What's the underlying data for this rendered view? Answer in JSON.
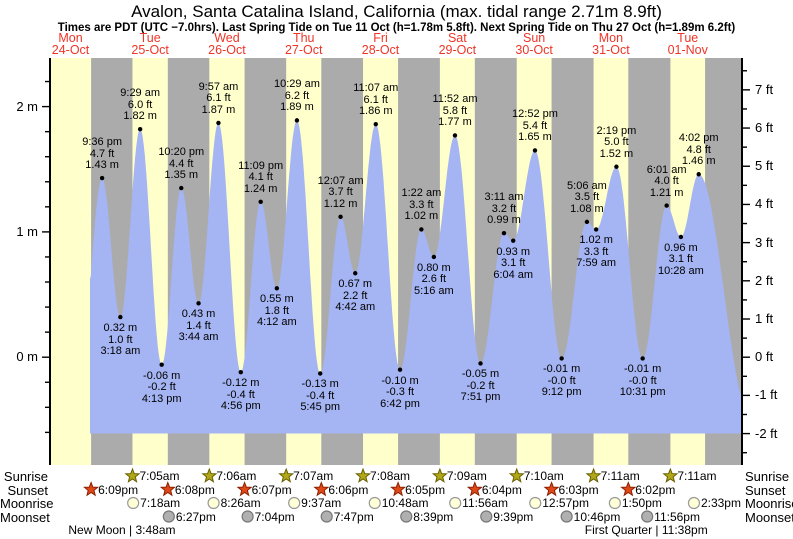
{
  "title": "Avalon, Santa Catalina Island, California (max. tidal range 2.71m 8.9ft)",
  "subtitle": "Times are PDT (UTC −7.0hrs). Last Spring Tide on Tue 11 Oct (h=1.78m 5.8ft). Next Spring Tide on Thu 27 Oct (h=1.89m 6.2ft)",
  "days": [
    {
      "name": "Mon",
      "date": "24-Oct"
    },
    {
      "name": "Tue",
      "date": "25-Oct"
    },
    {
      "name": "Wed",
      "date": "26-Oct"
    },
    {
      "name": "Thu",
      "date": "27-Oct"
    },
    {
      "name": "Fri",
      "date": "28-Oct"
    },
    {
      "name": "Sat",
      "date": "29-Oct"
    },
    {
      "name": "Sun",
      "date": "30-Oct"
    },
    {
      "name": "Mon",
      "date": "31-Oct"
    },
    {
      "name": "Tue",
      "date": "01-Nov"
    }
  ],
  "chart_data": {
    "type": "area",
    "series_label": "tide height",
    "x_axis": "Mon 24-Oct to Tue 01-Nov (PDT)",
    "y_left_unit": "m",
    "y_right_unit": "ft",
    "ylim_m": [
      -0.86,
      2.39
    ],
    "left_ticks": [
      {
        "v": 0,
        "label": "0 m"
      },
      {
        "v": 1,
        "label": "1 m"
      },
      {
        "v": 2,
        "label": "2 m"
      }
    ],
    "right_ticks": [
      {
        "ft": -2,
        "label": "-2 ft"
      },
      {
        "ft": -1,
        "label": "-1 ft"
      },
      {
        "ft": 0,
        "label": "0 ft"
      },
      {
        "ft": 1,
        "label": "1 ft"
      },
      {
        "ft": 2,
        "label": "2 ft"
      },
      {
        "ft": 3,
        "label": "3 ft"
      },
      {
        "ft": 4,
        "label": "4 ft"
      },
      {
        "ft": 5,
        "label": "5 ft"
      },
      {
        "ft": 6,
        "label": "6 ft"
      },
      {
        "ft": 7,
        "label": "7 ft"
      }
    ],
    "events": [
      {
        "day": 0,
        "date": "24-Oct",
        "kind": "high",
        "time": "9:36 pm",
        "hour": 21.6,
        "ft": "4.7 ft",
        "m": "1.43 m",
        "height_m": 1.43
      },
      {
        "day": 1,
        "date": "25-Oct",
        "kind": "low",
        "time": "3:18 am",
        "hour": 3.3,
        "ft": "1.0 ft",
        "m": "0.32 m",
        "height_m": 0.32
      },
      {
        "day": 1,
        "date": "25-Oct",
        "kind": "high",
        "time": "9:29 am",
        "hour": 9.483,
        "ft": "6.0 ft",
        "m": "1.82 m",
        "height_m": 1.82
      },
      {
        "day": 1,
        "date": "25-Oct",
        "kind": "low",
        "time": "4:13 pm",
        "hour": 16.217,
        "ft": "-0.2 ft",
        "m": "-0.06 m",
        "height_m": -0.06
      },
      {
        "day": 1,
        "date": "25-Oct",
        "kind": "high",
        "time": "10:20 pm",
        "hour": 22.333,
        "ft": "4.4 ft",
        "m": "1.35 m",
        "height_m": 1.35
      },
      {
        "day": 2,
        "date": "26-Oct",
        "kind": "low",
        "time": "3:44 am",
        "hour": 3.733,
        "ft": "1.4 ft",
        "m": "0.43 m",
        "height_m": 0.43
      },
      {
        "day": 2,
        "date": "26-Oct",
        "kind": "high",
        "time": "9:57 am",
        "hour": 9.95,
        "ft": "6.1 ft",
        "m": "1.87 m",
        "height_m": 1.87
      },
      {
        "day": 2,
        "date": "26-Oct",
        "kind": "low",
        "time": "4:56 pm",
        "hour": 16.933,
        "ft": "-0.4 ft",
        "m": "-0.12 m",
        "height_m": -0.12
      },
      {
        "day": 2,
        "date": "26-Oct",
        "kind": "high",
        "time": "11:09 pm",
        "hour": 23.15,
        "ft": "4.1 ft",
        "m": "1.24 m",
        "height_m": 1.24
      },
      {
        "day": 3,
        "date": "27-Oct",
        "kind": "low",
        "time": "4:12 am",
        "hour": 4.2,
        "ft": "1.8 ft",
        "m": "0.55 m",
        "height_m": 0.55
      },
      {
        "day": 3,
        "date": "27-Oct",
        "kind": "high",
        "time": "10:29 am",
        "hour": 10.483,
        "ft": "6.2 ft",
        "m": "1.89 m",
        "height_m": 1.89
      },
      {
        "day": 3,
        "date": "27-Oct",
        "kind": "low",
        "time": "5:45 pm",
        "hour": 17.75,
        "ft": "-0.4 ft",
        "m": "-0.13 m",
        "height_m": -0.13
      },
      {
        "day": 4,
        "date": "28-Oct",
        "kind": "high",
        "time": "12:07 am",
        "hour": 0.117,
        "ft": "3.7 ft",
        "m": "1.12 m",
        "height_m": 1.12
      },
      {
        "day": 4,
        "date": "28-Oct",
        "kind": "low",
        "time": "4:42 am",
        "hour": 4.7,
        "ft": "2.2 ft",
        "m": "0.67 m",
        "height_m": 0.67
      },
      {
        "day": 4,
        "date": "28-Oct",
        "kind": "high",
        "time": "11:07 am",
        "hour": 11.117,
        "ft": "6.1 ft",
        "m": "1.86 m",
        "height_m": 1.86
      },
      {
        "day": 4,
        "date": "28-Oct",
        "kind": "low",
        "time": "6:42 pm",
        "hour": 18.7,
        "ft": "-0.3 ft",
        "m": "-0.10 m",
        "height_m": -0.1
      },
      {
        "day": 5,
        "date": "29-Oct",
        "kind": "high",
        "time": "1:22 am",
        "hour": 1.367,
        "ft": "3.3 ft",
        "m": "1.02 m",
        "height_m": 1.02
      },
      {
        "day": 5,
        "date": "29-Oct",
        "kind": "low",
        "time": "5:16 am",
        "hour": 5.267,
        "ft": "2.6 ft",
        "m": "0.80 m",
        "height_m": 0.8
      },
      {
        "day": 5,
        "date": "29-Oct",
        "kind": "high",
        "time": "11:52 am",
        "hour": 11.867,
        "ft": "5.8 ft",
        "m": "1.77 m",
        "height_m": 1.77
      },
      {
        "day": 5,
        "date": "29-Oct",
        "kind": "low",
        "time": "7:51 pm",
        "hour": 19.85,
        "ft": "-0.2 ft",
        "m": "-0.05 m",
        "height_m": -0.05
      },
      {
        "day": 6,
        "date": "30-Oct",
        "kind": "high",
        "time": "3:11 am",
        "hour": 3.183,
        "ft": "3.2 ft",
        "m": "0.99 m",
        "height_m": 0.99
      },
      {
        "day": 6,
        "date": "30-Oct",
        "kind": "low",
        "time": "6:04 am",
        "hour": 6.067,
        "ft": "3.1 ft",
        "m": "0.93 m",
        "height_m": 0.93
      },
      {
        "day": 6,
        "date": "30-Oct",
        "kind": "high",
        "time": "12:52 pm",
        "hour": 12.867,
        "ft": "5.4 ft",
        "m": "1.65 m",
        "height_m": 1.65
      },
      {
        "day": 6,
        "date": "30-Oct",
        "kind": "low",
        "time": "9:12 pm",
        "hour": 21.2,
        "ft": "-0.0 ft",
        "m": "-0.01 m",
        "height_m": -0.01
      },
      {
        "day": 7,
        "date": "31-Oct",
        "kind": "high",
        "time": "5:06 am",
        "hour": 5.1,
        "ft": "3.5 ft",
        "m": "1.08 m",
        "height_m": 1.08
      },
      {
        "day": 7,
        "date": "31-Oct",
        "kind": "low",
        "time": "7:59 am",
        "hour": 7.983,
        "ft": "3.3 ft",
        "m": "1.02 m",
        "height_m": 1.02
      },
      {
        "day": 7,
        "date": "31-Oct",
        "kind": "high",
        "time": "2:19 pm",
        "hour": 14.317,
        "ft": "5.0 ft",
        "m": "1.52 m",
        "height_m": 1.52
      },
      {
        "day": 7,
        "date": "31-Oct",
        "kind": "low",
        "time": "10:31 pm",
        "hour": 22.517,
        "ft": "-0.0 ft",
        "m": "-0.01 m",
        "height_m": -0.01
      },
      {
        "day": 8,
        "date": "01-Nov",
        "kind": "high",
        "time": "6:01 am",
        "hour": 6.017,
        "ft": "4.0 ft",
        "m": "1.21 m",
        "height_m": 1.21
      },
      {
        "day": 8,
        "date": "01-Nov",
        "kind": "low",
        "time": "10:28 am",
        "hour": 10.467,
        "ft": "3.1 ft",
        "m": "0.96 m",
        "height_m": 0.96
      },
      {
        "day": 8,
        "date": "01-Nov",
        "kind": "high",
        "time": "4:02 pm",
        "hour": 16.033,
        "ft": "4.8 ft",
        "m": "1.46 m",
        "height_m": 1.46
      }
    ]
  },
  "astro": {
    "rows": [
      {
        "id": "sunrise",
        "label": "Sunrise",
        "icon": "sunrise-star",
        "entries": [
          {
            "day": 1,
            "hour": 7.083,
            "time": "7:05am"
          },
          {
            "day": 2,
            "hour": 7.1,
            "time": "7:06am"
          },
          {
            "day": 3,
            "hour": 7.117,
            "time": "7:07am"
          },
          {
            "day": 4,
            "hour": 7.133,
            "time": "7:08am"
          },
          {
            "day": 5,
            "hour": 7.15,
            "time": "7:09am"
          },
          {
            "day": 6,
            "hour": 7.167,
            "time": "7:10am"
          },
          {
            "day": 7,
            "hour": 7.183,
            "time": "7:11am"
          },
          {
            "day": 8,
            "hour": 7.183,
            "time": "7:11am"
          }
        ]
      },
      {
        "id": "sunset",
        "label": "Sunset",
        "icon": "sunset-star",
        "entries": [
          {
            "day": 0,
            "hour": 18.15,
            "time": "6:09pm"
          },
          {
            "day": 1,
            "hour": 18.133,
            "time": "6:08pm"
          },
          {
            "day": 2,
            "hour": 18.117,
            "time": "6:07pm"
          },
          {
            "day": 3,
            "hour": 18.1,
            "time": "6:06pm"
          },
          {
            "day": 4,
            "hour": 18.083,
            "time": "6:05pm"
          },
          {
            "day": 5,
            "hour": 18.067,
            "time": "6:04pm"
          },
          {
            "day": 6,
            "hour": 18.05,
            "time": "6:03pm"
          },
          {
            "day": 7,
            "hour": 18.033,
            "time": "6:02pm"
          }
        ]
      },
      {
        "id": "moonrise",
        "label": "Moonrise",
        "icon": "moonrise-circle",
        "entries": [
          {
            "day": 1,
            "hour": 7.3,
            "time": "7:18am"
          },
          {
            "day": 2,
            "hour": 8.433,
            "time": "8:26am"
          },
          {
            "day": 3,
            "hour": 9.617,
            "time": "9:37am"
          },
          {
            "day": 4,
            "hour": 10.8,
            "time": "10:48am"
          },
          {
            "day": 5,
            "hour": 11.933,
            "time": "11:56am"
          },
          {
            "day": 6,
            "hour": 12.95,
            "time": "12:57pm"
          },
          {
            "day": 7,
            "hour": 13.833,
            "time": "1:50pm"
          },
          {
            "day": 8,
            "hour": 14.55,
            "time": "2:33pm"
          }
        ]
      },
      {
        "id": "moonset",
        "label": "Moonset",
        "icon": "moonset-circle",
        "entries": [
          {
            "day": 1,
            "hour": 18.45,
            "time": "6:27pm"
          },
          {
            "day": 2,
            "hour": 19.067,
            "time": "7:04pm"
          },
          {
            "day": 3,
            "hour": 19.783,
            "time": "7:47pm"
          },
          {
            "day": 4,
            "hour": 20.65,
            "time": "8:39pm"
          },
          {
            "day": 5,
            "hour": 21.65,
            "time": "9:39pm"
          },
          {
            "day": 6,
            "hour": 22.767,
            "time": "10:46pm"
          },
          {
            "day": 7,
            "hour": 23.933,
            "time": "11:56pm"
          }
        ]
      }
    ],
    "phases": [
      {
        "label": "New Moon | 3:48am",
        "day": 1,
        "hour": 3.8
      },
      {
        "label": "First Quarter | 11:38pm",
        "day": 7,
        "hour": 23.633
      }
    ]
  },
  "colors": {
    "daylight_band": "#ffffcc",
    "night_band": "#ababab",
    "tide_fill": "#a5b4f2",
    "date_red": "#ee3528",
    "axis_black": "#000000",
    "sunrise_star_fill": "#b0a818",
    "sunrise_star_stroke": "#6a6000",
    "sunset_star_fill": "#e04818",
    "sunset_star_stroke": "#8a2000",
    "moonrise_fill": "#ffffd8",
    "moonrise_stroke": "#999999",
    "moonset_fill": "#b0b0b0",
    "moonset_stroke": "#777777"
  }
}
